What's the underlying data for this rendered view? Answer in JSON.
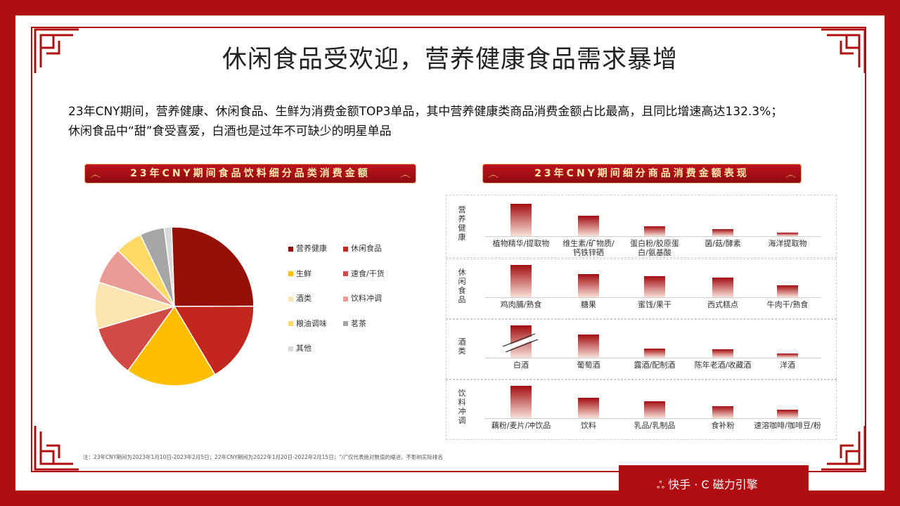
{
  "page": {
    "title": "休闲食品受欢迎，营养健康食品需求暴增",
    "description_line1": "23年CNY期间，营养健康、休闲食品、生鲜为消费金额TOP3单品，其中营养健康类商品消费金额占比最高，且同比增速高达132.3%；",
    "description_line2": "休闲食品中“甜”食受喜爱，白酒也是过年不可缺少的明星单品",
    "footnote": "注：23年CNY期间为2023年1月10日-2023年2月5日；22年CNY期间为2022年1月20日-2022年2月15日；“//”仅代表绝对数值的缩进，不影响实际排名",
    "brand_kuaishou": "快手",
    "brand_dot": "·",
    "brand_cili": "磁力引擎"
  },
  "colors": {
    "frame": "#b00d12",
    "ribbon_text": "#ffe9b0"
  },
  "chart_data": [
    {
      "type": "pie",
      "title": "23年CNY期间食品饮料细分品类消费金额",
      "categories": [
        "营养健康",
        "休闲食品",
        "生鲜",
        "速食/干货",
        "酒类",
        "饮料冲调",
        "粮油调味",
        "茗茶",
        "其他"
      ],
      "values": [
        25.5,
        16.5,
        18.5,
        10.5,
        9.5,
        7.5,
        5.5,
        5.0,
        1.5
      ],
      "colors": [
        "#951108",
        "#c2261c",
        "#ffbf00",
        "#d24a45",
        "#fde5b2",
        "#e89c95",
        "#ffd966",
        "#a6a6a6",
        "#d9d9d9"
      ],
      "legend_position": "right"
    },
    {
      "type": "bar",
      "title": "23年CNY期间细分商品消费金额表现",
      "panels": [
        {
          "group": "营养健康",
          "categories": [
            "植物精华/提取物",
            "维生素/矿物质/钙铁锌硒",
            "蛋白粉/胶原蛋白/氨基酸",
            "菌/菇/酵素",
            "海洋提取物"
          ],
          "values": [
            100,
            62,
            30,
            22,
            10
          ]
        },
        {
          "group": "休闲食品",
          "categories": [
            "鸡肉脯/熟食",
            "糖果",
            "蜜饯/果干",
            "西式糕点",
            "牛肉干/熟食"
          ],
          "values": [
            100,
            72,
            66,
            60,
            38
          ]
        },
        {
          "group": "酒类",
          "categories": [
            "白酒",
            "葡萄酒",
            "露酒/配制酒",
            "陈年老酒/收藏酒",
            "洋酒"
          ],
          "values": [
            100,
            72,
            28,
            26,
            14
          ],
          "axis_break_on": "白酒"
        },
        {
          "group": "饮料冲调",
          "categories": [
            "藕粉/麦片/冲饮品",
            "饮料",
            "乳品/乳制品",
            "食补粉",
            "速溶咖啡/咖啡豆/粉"
          ],
          "values": [
            100,
            62,
            52,
            36,
            26
          ]
        }
      ]
    }
  ]
}
